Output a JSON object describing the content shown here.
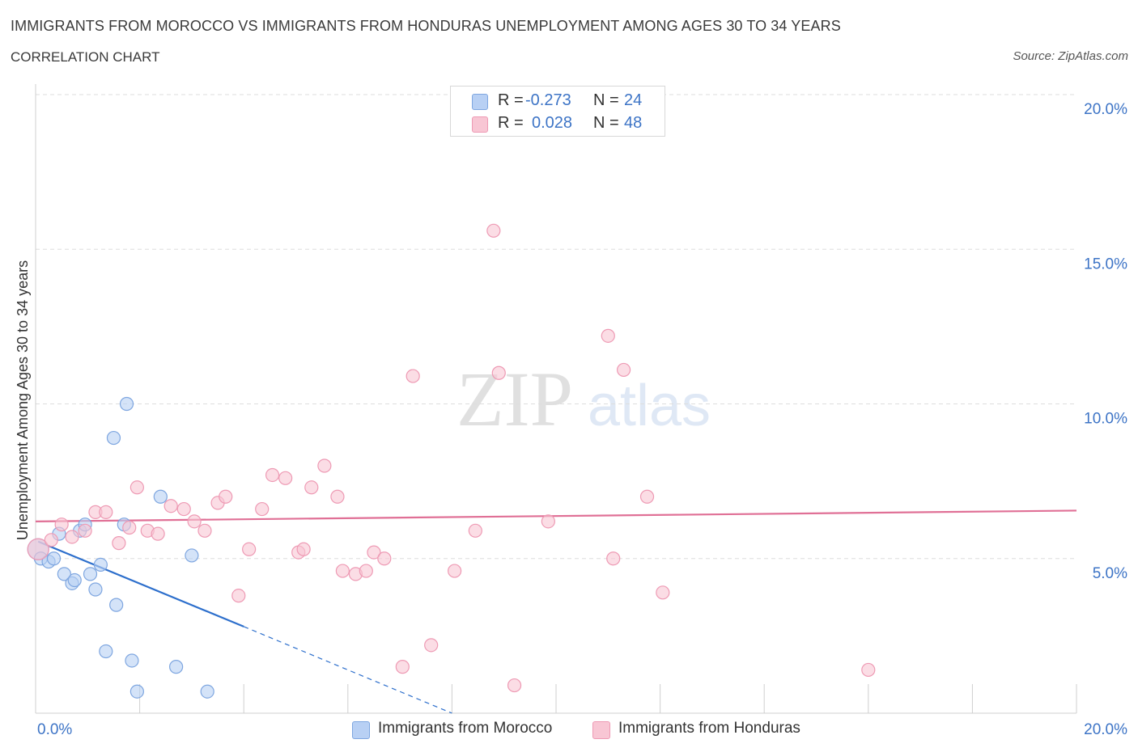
{
  "title": "IMMIGRANTS FROM MOROCCO VS IMMIGRANTS FROM HONDURAS UNEMPLOYMENT AMONG AGES 30 TO 34 YEARS",
  "subtitle": "CORRELATION CHART",
  "source": "Source: ZipAtlas.com",
  "watermark": {
    "zip": "ZIP",
    "atlas": "atlas"
  },
  "legend": {
    "r_label": "R =",
    "n_label": "N =",
    "rows": [
      {
        "r": "-0.273",
        "n": "24"
      },
      {
        "r": "0.028",
        "n": "48"
      }
    ]
  },
  "colors": {
    "morocco_fill": "#b8d0f4",
    "morocco_stroke": "#7ea6e0",
    "morocco_line": "#2d6fcc",
    "honduras_fill": "#f8c6d4",
    "honduras_stroke": "#ee9ab4",
    "honduras_line": "#e07096",
    "axis_text": "#3d74c6",
    "grid": "#dedede"
  },
  "chart_data": {
    "type": "scatter",
    "title": "IMMIGRANTS FROM MOROCCO VS IMMIGRANTS FROM HONDURAS UNEMPLOYMENT AMONG AGES 30 TO 34 YEARS",
    "xlabel": "",
    "ylabel": "Unemployment Among Ages 30 to 34 years",
    "xlim": [
      0,
      20
    ],
    "ylim": [
      0,
      20
    ],
    "x_tick_labels": [
      "0.0%",
      "20.0%"
    ],
    "y_ticks": [
      5,
      10,
      15,
      20
    ],
    "y_tick_labels": [
      "5.0%",
      "10.0%",
      "15.0%",
      "20.0%"
    ],
    "grid": true,
    "series": [
      {
        "name": "Immigrants from Morocco",
        "r": -0.273,
        "n": 24,
        "points": [
          [
            0.05,
            5.3
          ],
          [
            0.1,
            5.0
          ],
          [
            0.25,
            4.9
          ],
          [
            0.35,
            5.0
          ],
          [
            0.45,
            5.8
          ],
          [
            0.55,
            4.5
          ],
          [
            0.7,
            4.2
          ],
          [
            0.75,
            4.3
          ],
          [
            0.85,
            5.9
          ],
          [
            0.95,
            6.1
          ],
          [
            1.05,
            4.5
          ],
          [
            1.15,
            4.0
          ],
          [
            1.25,
            4.8
          ],
          [
            1.35,
            2.0
          ],
          [
            1.5,
            8.9
          ],
          [
            1.55,
            3.5
          ],
          [
            1.7,
            6.1
          ],
          [
            1.75,
            10.0
          ],
          [
            1.85,
            1.7
          ],
          [
            1.95,
            0.7
          ],
          [
            2.4,
            7.0
          ],
          [
            2.7,
            1.5
          ],
          [
            3.0,
            5.1
          ],
          [
            3.3,
            0.7
          ]
        ],
        "trend_solid": [
          [
            0.05,
            5.55
          ],
          [
            4.0,
            2.8
          ]
        ],
        "trend_dashed": [
          [
            4.0,
            2.8
          ],
          [
            8.0,
            0.0
          ]
        ]
      },
      {
        "name": "Immigrants from Honduras",
        "r": 0.028,
        "n": 48,
        "points": [
          [
            0.05,
            5.3
          ],
          [
            0.3,
            5.6
          ],
          [
            0.5,
            6.1
          ],
          [
            0.7,
            5.7
          ],
          [
            0.95,
            5.9
          ],
          [
            1.15,
            6.5
          ],
          [
            1.35,
            6.5
          ],
          [
            1.6,
            5.5
          ],
          [
            1.8,
            6.0
          ],
          [
            1.95,
            7.3
          ],
          [
            2.15,
            5.9
          ],
          [
            2.35,
            5.8
          ],
          [
            2.6,
            6.7
          ],
          [
            2.85,
            6.6
          ],
          [
            3.05,
            6.2
          ],
          [
            3.25,
            5.9
          ],
          [
            3.5,
            6.8
          ],
          [
            3.65,
            7.0
          ],
          [
            3.9,
            3.8
          ],
          [
            4.1,
            5.3
          ],
          [
            4.35,
            6.6
          ],
          [
            4.55,
            7.7
          ],
          [
            4.8,
            7.6
          ],
          [
            5.05,
            5.2
          ],
          [
            5.15,
            5.3
          ],
          [
            5.3,
            7.3
          ],
          [
            5.55,
            8.0
          ],
          [
            5.8,
            7.0
          ],
          [
            5.9,
            4.6
          ],
          [
            6.15,
            4.5
          ],
          [
            6.35,
            4.6
          ],
          [
            6.5,
            5.2
          ],
          [
            6.7,
            5.0
          ],
          [
            7.05,
            1.5
          ],
          [
            7.25,
            10.9
          ],
          [
            7.6,
            2.2
          ],
          [
            8.05,
            4.6
          ],
          [
            8.45,
            5.9
          ],
          [
            8.8,
            15.6
          ],
          [
            8.9,
            11.0
          ],
          [
            9.2,
            0.9
          ],
          [
            9.85,
            6.2
          ],
          [
            11.0,
            12.2
          ],
          [
            11.1,
            5.0
          ],
          [
            11.3,
            11.1
          ],
          [
            11.75,
            7.0
          ],
          [
            12.05,
            3.9
          ],
          [
            16.0,
            1.4
          ]
        ],
        "trend_solid": [
          [
            0.0,
            6.2
          ],
          [
            20.0,
            6.55
          ]
        ]
      }
    ]
  }
}
